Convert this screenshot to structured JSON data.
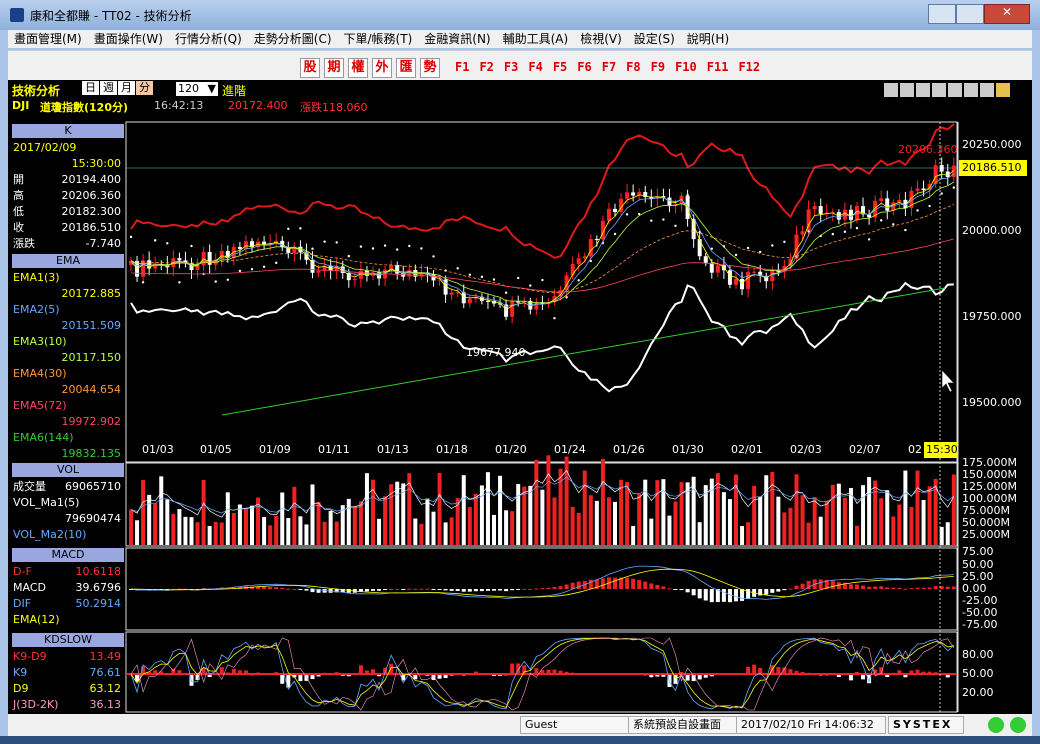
{
  "window": {
    "title": "康和全都賺 - TT02 - 技術分析"
  },
  "menu": [
    "畫面管理(M)",
    "畫面操作(W)",
    "行情分析(Q)",
    "走勢分析圖(C)",
    "下單/帳務(T)",
    "金融資訊(N)",
    "輔助工具(A)",
    "檢視(V)",
    "設定(S)",
    "說明(H)"
  ],
  "toolbar": {
    "markets": [
      "股",
      "期",
      "權",
      "外",
      "匯",
      "勢"
    ],
    "function_keys": [
      "F1",
      "F2",
      "F3",
      "F4",
      "F5",
      "F6",
      "F7",
      "F8",
      "F9",
      "F10",
      "F11",
      "F12"
    ]
  },
  "header": {
    "title": "技術分析",
    "periods": [
      "日",
      "週",
      "月",
      "分"
    ],
    "count": "120",
    "advanced": "進階",
    "symbol": "DJI",
    "name": "道瓊指數(120分)",
    "time": "16:42:13",
    "price": "20172.400",
    "change": "漲跌118.060"
  },
  "panels": [
    {
      "title": "K",
      "date": "2017/02/09",
      "time": "15:30:00",
      "fields": [
        {
          "label": "開",
          "value": "20194.400"
        },
        {
          "label": "高",
          "value": "20206.360"
        },
        {
          "label": "低",
          "value": "20182.300"
        },
        {
          "label": "收",
          "value": "20186.510"
        },
        {
          "label": "漲跌",
          "value": "-7.740"
        }
      ]
    },
    {
      "title": "EMA",
      "fields": [
        {
          "label": "EMA1(3)",
          "value": "20172.885"
        },
        {
          "label": "EMA2(5)",
          "value": "20151.509"
        },
        {
          "label": "EMA3(10)",
          "value": "20117.150"
        },
        {
          "label": "EMA4(30)",
          "value": "20044.654"
        },
        {
          "label": "EMA5(72)",
          "value": "19972.902"
        },
        {
          "label": "EMA6(144)",
          "value": "19832.135"
        }
      ]
    },
    {
      "title": "VOL",
      "fields": [
        {
          "label": "成交量",
          "value": "69065710"
        },
        {
          "label": "VOL_Ma1(5)",
          "value": "79690474"
        },
        {
          "label": "VOL_Ma2(10)"
        }
      ]
    },
    {
      "title": "MACD",
      "fields": [
        {
          "label": "D-F",
          "value": "10.6118"
        },
        {
          "label": "MACD",
          "value": "39.6796"
        },
        {
          "label": "DIF",
          "value": "50.2914"
        },
        {
          "label": "EMA(12)"
        }
      ]
    },
    {
      "title": "KDSLOW",
      "fields": [
        {
          "label": "K9-D9",
          "value": "13.49"
        },
        {
          "label": "K9",
          "value": "76.61"
        },
        {
          "label": "D9",
          "value": "63.12"
        },
        {
          "label": "J(3D-2K)",
          "value": "36.13"
        }
      ]
    }
  ],
  "price_axis": {
    "ticks": [
      "20250.000",
      "20000.000",
      "19750.000",
      "19500.000"
    ],
    "current": "20186.510",
    "high": "20206.360",
    "low": "19677.940"
  },
  "dates": [
    "01/03",
    "01/05",
    "01/09",
    "01/11",
    "01/13",
    "01/18",
    "01/20",
    "01/24",
    "01/26",
    "01/30",
    "02/01",
    "02/03",
    "02/07",
    "02"
  ],
  "cursor_time": "15:30",
  "vol_axis": [
    "175.000M",
    "150.000M",
    "125.000M",
    "100.000M",
    "75.000M",
    "50.000M",
    "25.000M"
  ],
  "macd_axis": [
    "75.00",
    "50.00",
    "25.00",
    "0.00",
    "-25.00",
    "-50.00",
    "-75.00"
  ],
  "kd_axis": [
    "80.00",
    "50.00",
    "20.00"
  ],
  "status": {
    "user": "Guest",
    "layout": "系統預設自設畫面",
    "datetime": "2017/02/10 Fri 14:06:32",
    "brand": "SYSTEX"
  }
}
